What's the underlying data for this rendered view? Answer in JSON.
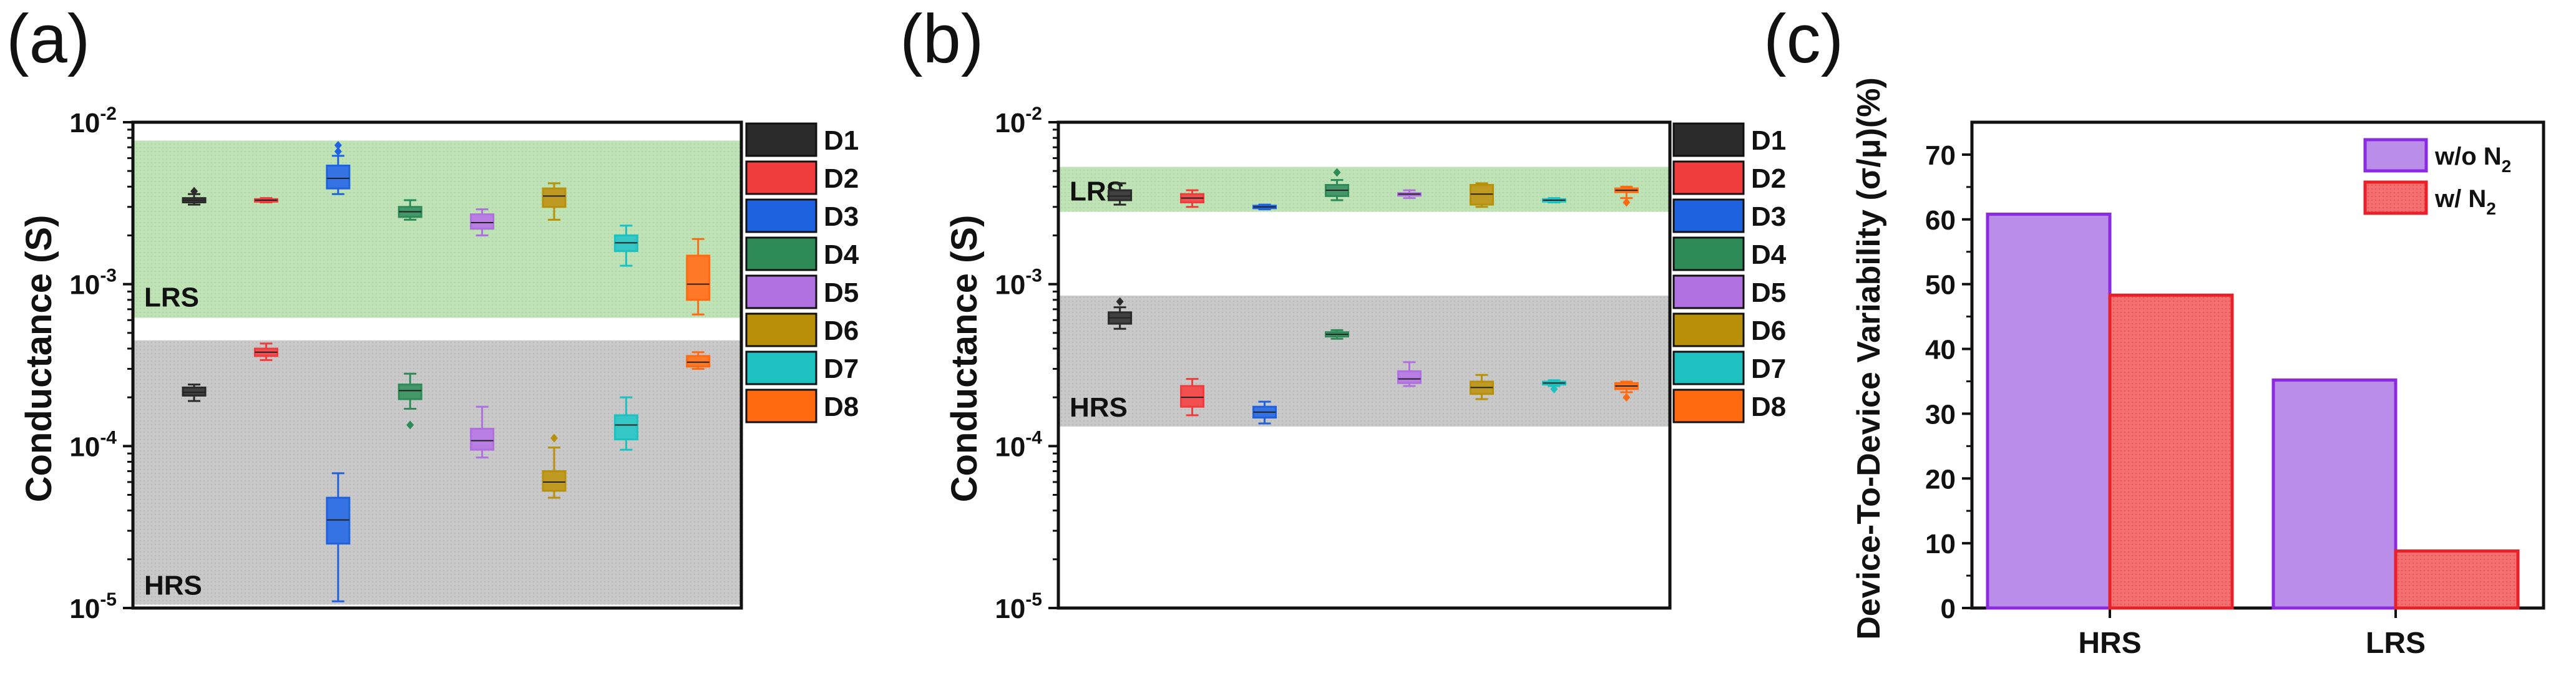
{
  "chart_data": [
    {
      "panel": "(a)",
      "type": "box",
      "ylabel": "Conductance (S)",
      "yscale": "log",
      "ylim": [
        1e-05,
        0.01
      ],
      "yticks": [
        {
          "base": "10",
          "exp": "-2",
          "v": 0.01
        },
        {
          "base": "10",
          "exp": "-3",
          "v": 0.001
        },
        {
          "base": "10",
          "exp": "-4",
          "v": 0.0001
        },
        {
          "base": "10",
          "exp": "-5",
          "v": 1e-05
        }
      ],
      "bands": [
        {
          "label": "LRS",
          "from": 0.00062,
          "to": 0.0077,
          "color": "#b9ddb0"
        },
        {
          "label": "HRS",
          "from": 1.05e-05,
          "to": 0.00045,
          "color": "#c8c8c8"
        }
      ],
      "devices": [
        {
          "name": "D1",
          "color": "#2b2b2b",
          "lrs": {
            "min": 0.0031,
            "q1": 0.0032,
            "med": 0.0033,
            "q3": 0.0034,
            "max": 0.0036,
            "outliers": [
              0.00375
            ]
          },
          "hrs": {
            "min": 0.00019,
            "q1": 0.000205,
            "med": 0.000215,
            "q3": 0.00023,
            "max": 0.00024,
            "outliers": []
          }
        },
        {
          "name": "D2",
          "color": "#f03c3c",
          "lrs": {
            "min": 0.0032,
            "q1": 0.00325,
            "med": 0.0033,
            "q3": 0.00335,
            "max": 0.0034,
            "outliers": []
          },
          "hrs": {
            "min": 0.00034,
            "q1": 0.00036,
            "med": 0.00038,
            "q3": 0.0004,
            "max": 0.00043,
            "outliers": []
          }
        },
        {
          "name": "D3",
          "color": "#1f62e0",
          "lrs": {
            "min": 0.0036,
            "q1": 0.0039,
            "med": 0.0045,
            "q3": 0.0054,
            "max": 0.0062,
            "outliers": [
              0.0066,
              0.0072
            ]
          },
          "hrs": {
            "min": 1.1e-05,
            "q1": 2.5e-05,
            "med": 3.5e-05,
            "q3": 4.8e-05,
            "max": 6.8e-05,
            "outliers": []
          }
        },
        {
          "name": "D4",
          "color": "#2e8b57",
          "lrs": {
            "min": 0.0025,
            "q1": 0.0026,
            "med": 0.0028,
            "q3": 0.003,
            "max": 0.0033,
            "outliers": []
          },
          "hrs": {
            "min": 0.00017,
            "q1": 0.000195,
            "med": 0.00022,
            "q3": 0.00024,
            "max": 0.00028,
            "outliers": [
              0.000135
            ]
          }
        },
        {
          "name": "D5",
          "color": "#b070e0",
          "lrs": {
            "min": 0.002,
            "q1": 0.0022,
            "med": 0.0024,
            "q3": 0.0027,
            "max": 0.0029,
            "outliers": []
          },
          "hrs": {
            "min": 8.5e-05,
            "q1": 9.5e-05,
            "med": 0.000108,
            "q3": 0.000128,
            "max": 0.000175,
            "outliers": []
          }
        },
        {
          "name": "D6",
          "color": "#b8900a",
          "lrs": {
            "min": 0.0025,
            "q1": 0.003,
            "med": 0.0035,
            "q3": 0.0039,
            "max": 0.0042,
            "outliers": []
          },
          "hrs": {
            "min": 4.8e-05,
            "q1": 5.3e-05,
            "med": 6e-05,
            "q3": 7e-05,
            "max": 9.8e-05,
            "outliers": [
              0.000112
            ]
          }
        },
        {
          "name": "D7",
          "color": "#1ec0c0",
          "lrs": {
            "min": 0.0013,
            "q1": 0.0016,
            "med": 0.0018,
            "q3": 0.002,
            "max": 0.0023,
            "outliers": []
          },
          "hrs": {
            "min": 9.5e-05,
            "q1": 0.00011,
            "med": 0.000135,
            "q3": 0.000155,
            "max": 0.0002,
            "outliers": []
          }
        },
        {
          "name": "D8",
          "color": "#ff6a10",
          "lrs": {
            "min": 0.00065,
            "q1": 0.0008,
            "med": 0.001,
            "q3": 0.0015,
            "max": 0.0019,
            "outliers": []
          },
          "hrs": {
            "min": 0.0003,
            "q1": 0.00031,
            "med": 0.00033,
            "q3": 0.00036,
            "max": 0.00038,
            "outliers": []
          }
        }
      ]
    },
    {
      "panel": "(b)",
      "type": "box",
      "ylabel": "Conductance (S)",
      "yscale": "log",
      "ylim": [
        1e-05,
        0.01
      ],
      "yticks": [
        {
          "base": "10",
          "exp": "-2",
          "v": 0.01
        },
        {
          "base": "10",
          "exp": "-3",
          "v": 0.001
        },
        {
          "base": "10",
          "exp": "-4",
          "v": 0.0001
        },
        {
          "base": "10",
          "exp": "-5",
          "v": 1e-05
        }
      ],
      "bands": [
        {
          "label": "LRS",
          "from": 0.0028,
          "to": 0.0053,
          "color": "#b9ddb0"
        },
        {
          "label": "HRS",
          "from": 0.000132,
          "to": 0.00085,
          "color": "#c8c8c8"
        }
      ],
      "devices": [
        {
          "name": "D1",
          "color": "#2b2b2b",
          "lrs": {
            "min": 0.0031,
            "q1": 0.0033,
            "med": 0.0035,
            "q3": 0.0038,
            "max": 0.0042,
            "outliers": []
          },
          "hrs": {
            "min": 0.00053,
            "q1": 0.00057,
            "med": 0.00062,
            "q3": 0.00067,
            "max": 0.00072,
            "outliers": [
              0.00078
            ]
          }
        },
        {
          "name": "D2",
          "color": "#f03c3c",
          "lrs": {
            "min": 0.003,
            "q1": 0.0032,
            "med": 0.0034,
            "q3": 0.0036,
            "max": 0.0038,
            "outliers": []
          },
          "hrs": {
            "min": 0.000155,
            "q1": 0.000175,
            "med": 0.0002,
            "q3": 0.000235,
            "max": 0.00026,
            "outliers": []
          }
        },
        {
          "name": "D3",
          "color": "#1f62e0",
          "lrs": {
            "min": 0.0029,
            "q1": 0.00295,
            "med": 0.003,
            "q3": 0.00305,
            "max": 0.0031,
            "outliers": []
          },
          "hrs": {
            "min": 0.000138,
            "q1": 0.00015,
            "med": 0.000162,
            "q3": 0.000175,
            "max": 0.000188,
            "outliers": []
          }
        },
        {
          "name": "D4",
          "color": "#2e8b57",
          "lrs": {
            "min": 0.0033,
            "q1": 0.0035,
            "med": 0.0038,
            "q3": 0.0041,
            "max": 0.0044,
            "outliers": [
              0.0049
            ]
          },
          "hrs": {
            "min": 0.00046,
            "q1": 0.000475,
            "med": 0.00049,
            "q3": 0.000505,
            "max": 0.00052,
            "outliers": []
          }
        },
        {
          "name": "D5",
          "color": "#b070e0",
          "lrs": {
            "min": 0.0034,
            "q1": 0.00355,
            "med": 0.0036,
            "q3": 0.00365,
            "max": 0.0038,
            "outliers": []
          },
          "hrs": {
            "min": 0.000235,
            "q1": 0.000245,
            "med": 0.00026,
            "q3": 0.00029,
            "max": 0.00033,
            "outliers": []
          }
        },
        {
          "name": "D6",
          "color": "#b8900a",
          "lrs": {
            "min": 0.003,
            "q1": 0.0031,
            "med": 0.0036,
            "q3": 0.0041,
            "max": 0.0042,
            "outliers": []
          },
          "hrs": {
            "min": 0.000195,
            "q1": 0.00021,
            "med": 0.00023,
            "q3": 0.00025,
            "max": 0.000275,
            "outliers": []
          }
        },
        {
          "name": "D7",
          "color": "#1ec0c0",
          "lrs": {
            "min": 0.0032,
            "q1": 0.00325,
            "med": 0.0033,
            "q3": 0.00335,
            "max": 0.0034,
            "outliers": []
          },
          "hrs": {
            "min": 0.000235,
            "q1": 0.00024,
            "med": 0.000245,
            "q3": 0.00025,
            "max": 0.000255,
            "outliers": [
              0.000225
            ]
          }
        },
        {
          "name": "D8",
          "color": "#ff6a10",
          "lrs": {
            "min": 0.0034,
            "q1": 0.0037,
            "med": 0.0038,
            "q3": 0.0039,
            "max": 0.004,
            "outliers": [
              0.0032
            ]
          },
          "hrs": {
            "min": 0.000215,
            "q1": 0.000225,
            "med": 0.000235,
            "q3": 0.000245,
            "max": 0.00025,
            "outliers": [
              0.0002
            ]
          }
        }
      ]
    },
    {
      "panel": "(c)",
      "type": "bar",
      "ylabel": "Device-To-Device Variability (σ/μ)(%)",
      "ylim": [
        0,
        75
      ],
      "yticks": [
        0,
        10,
        20,
        30,
        40,
        50,
        60,
        70
      ],
      "categories": [
        "HRS",
        "LRS"
      ],
      "series": [
        {
          "name": "w/o N",
          "sub": "2",
          "color": "#b98de8",
          "edge": "#8a2be2",
          "values": [
            60.8,
            35.2
          ]
        },
        {
          "name": "w/ N",
          "sub": "2",
          "color": "#f06464",
          "edge": "#e8202a",
          "values": [
            48.3,
            8.8
          ]
        }
      ]
    }
  ]
}
